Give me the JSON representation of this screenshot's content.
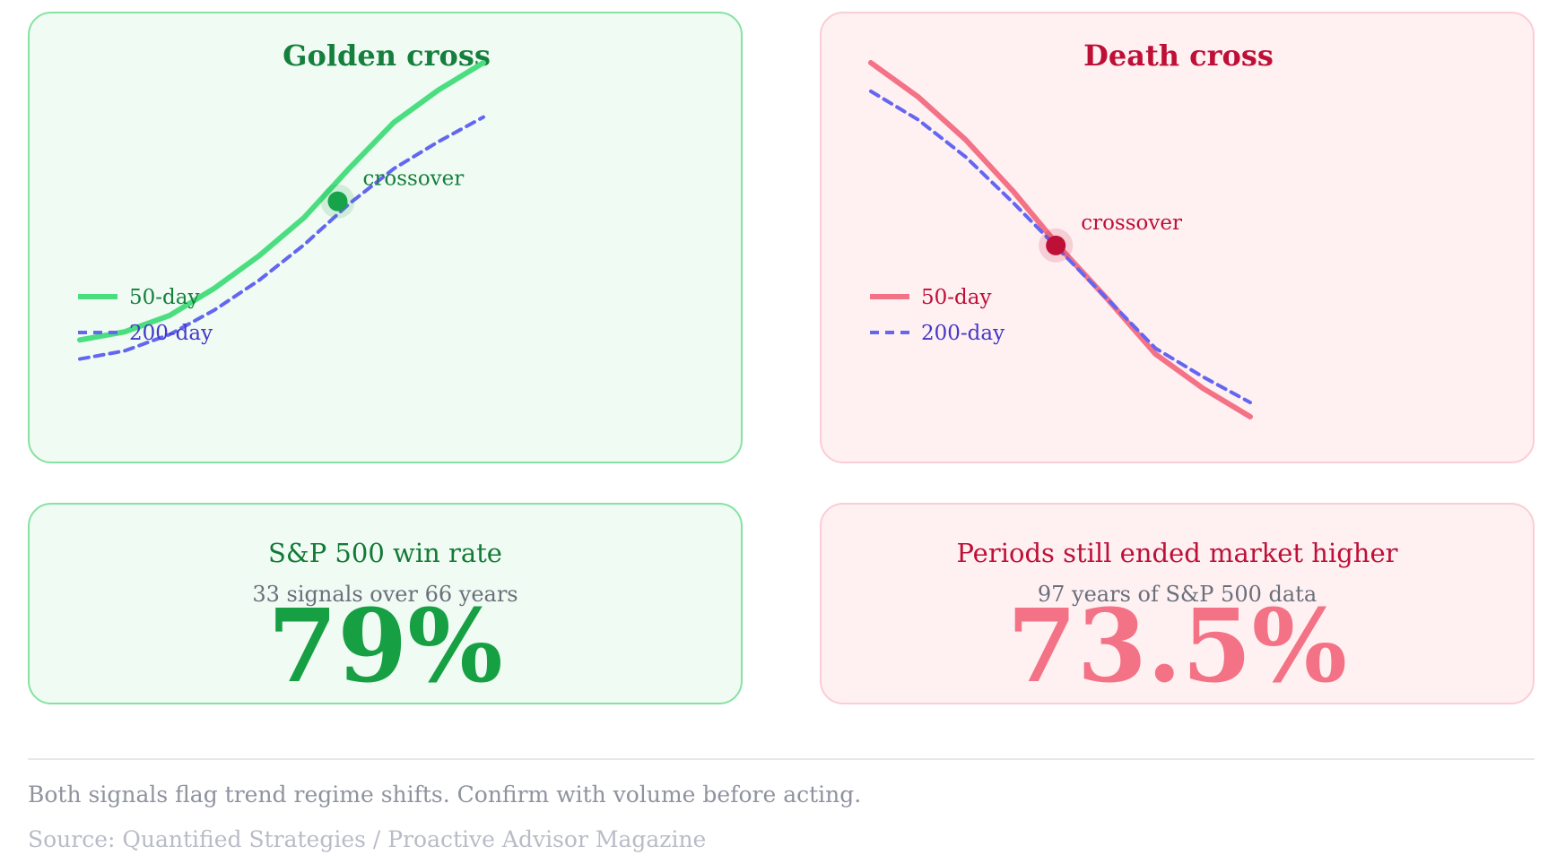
{
  "colors": {
    "golden_fast": "#4ade80",
    "golden_slow": "#6366f1",
    "golden_text": "#15803d",
    "golden_dot": "#16a34a",
    "death_fast": "#f47286",
    "death_slow": "#6366f1",
    "death_text": "#be1037",
    "death_dot": "#be1037",
    "slow_label": "#4338ca"
  },
  "chart_data": [
    {
      "type": "line",
      "title": "Golden cross",
      "x": [
        0,
        1,
        2,
        3,
        4,
        5,
        6,
        7,
        8,
        9
      ],
      "series": [
        {
          "name": "50-day",
          "style": "solid",
          "values": [
            20,
            23,
            29,
            39,
            51,
            65,
            83,
            100,
            112,
            122
          ]
        },
        {
          "name": "200-day",
          "style": "dashed",
          "values": [
            13,
            16,
            22,
            31,
            42,
            55,
            70,
            83,
            93,
            102
          ]
        }
      ],
      "annotation": {
        "label": "crossover",
        "x": 5.75,
        "y": 71
      },
      "ylim": [
        0,
        122
      ],
      "legend": "left"
    },
    {
      "type": "line",
      "title": "Death cross",
      "x": [
        0,
        1,
        2,
        3,
        4,
        5,
        6,
        7,
        8
      ],
      "series": [
        {
          "name": "50-day",
          "style": "solid",
          "values": [
            122,
            110,
            95,
            77,
            57,
            39,
            20,
            8,
            -2
          ]
        },
        {
          "name": "200-day",
          "style": "dashed",
          "values": [
            112,
            102,
            89,
            73,
            56,
            39,
            22,
            12,
            3
          ]
        }
      ],
      "annotation": {
        "label": "crossover",
        "x": 3.9,
        "y": 58
      },
      "ylim": [
        -2,
        122
      ],
      "legend": "left"
    }
  ],
  "stats": {
    "golden": {
      "label": "S&P 500 win rate",
      "sub": "33 signals over 66 years",
      "value": "79%"
    },
    "death": {
      "label": "Periods still ended market higher",
      "sub": "97 years of S&P 500 data",
      "value": "73.5%"
    }
  },
  "footer": {
    "note": "Both signals flag trend regime shifts. Confirm with volume before acting.",
    "source": "Source: Quantified Strategies / Proactive Advisor Magazine"
  }
}
